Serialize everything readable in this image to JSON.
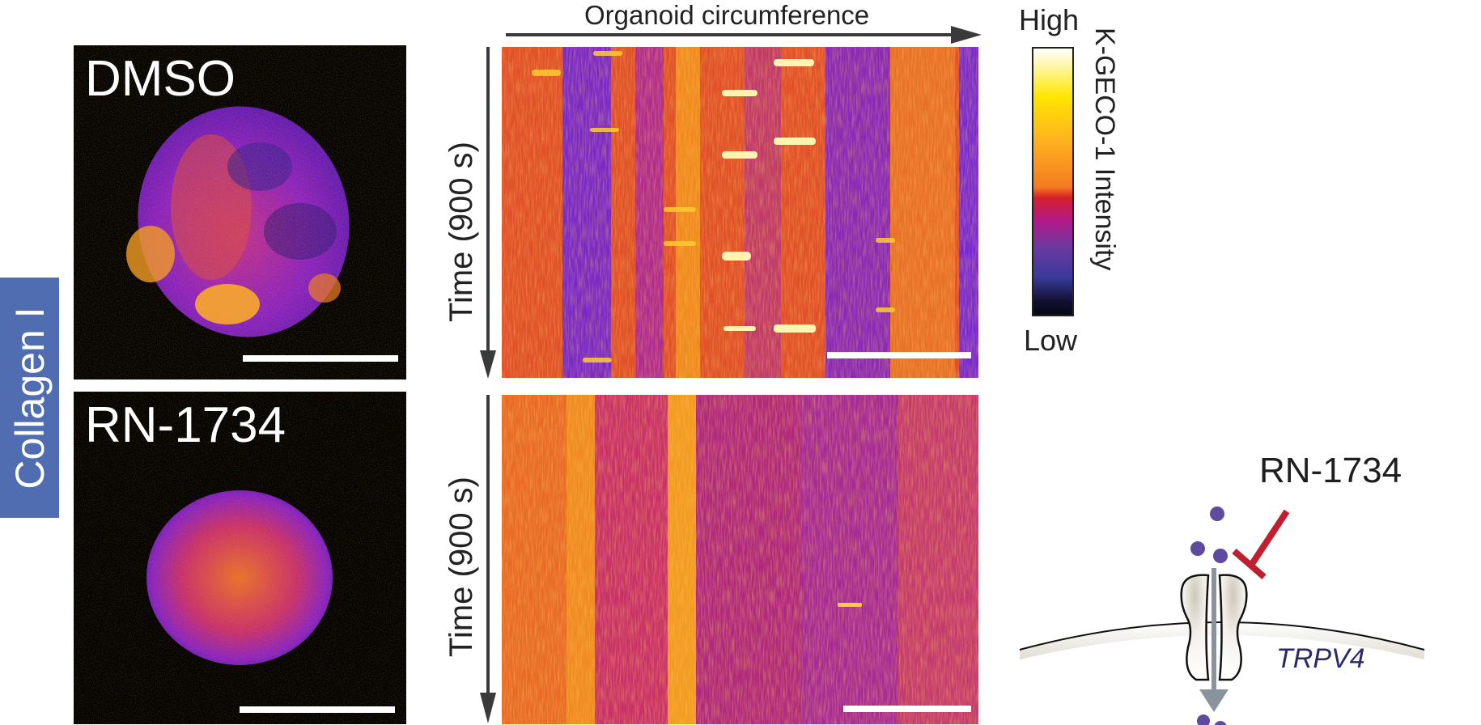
{
  "figure": {
    "row_label": "Collagen I",
    "panels": [
      {
        "condition": "DMSO"
      },
      {
        "condition": "RN-1734"
      }
    ],
    "kymograph": {
      "x_axis_label": "Organoid circumference",
      "y_axis_label": "Time (900 s)"
    },
    "colorbar": {
      "high_label": "High",
      "low_label": "Low",
      "title": "K-GECO-1 Intensity"
    },
    "schematic": {
      "drug_label": "RN-1734",
      "channel_label": "TRPV4",
      "colors": {
        "ion": "#5e4a9e",
        "inhibitor": "#c01f30",
        "channel_label": "#2a2a6a",
        "flux_arrow": "#8a939c"
      }
    }
  }
}
